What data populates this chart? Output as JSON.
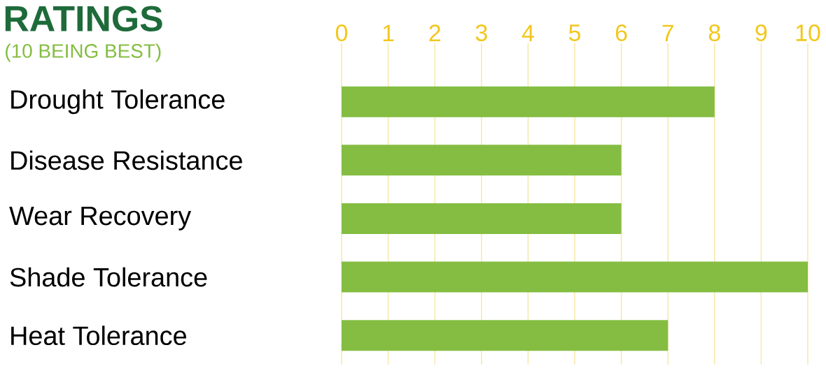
{
  "chart_data": {
    "type": "bar",
    "orientation": "horizontal",
    "title": "RATINGS",
    "subtitle": "(10 BEING BEST)",
    "categories": [
      "Drought Tolerance",
      "Disease Resistance",
      "Wear Recovery",
      "Shade Tolerance",
      "Heat Tolerance"
    ],
    "values": [
      8,
      6,
      6,
      10,
      7
    ],
    "color": "#84bd41",
    "xlim": [
      0,
      10
    ],
    "xticks": [
      0,
      1,
      2,
      3,
      4,
      5,
      6,
      7,
      8,
      9,
      10
    ],
    "grid": "x"
  }
}
